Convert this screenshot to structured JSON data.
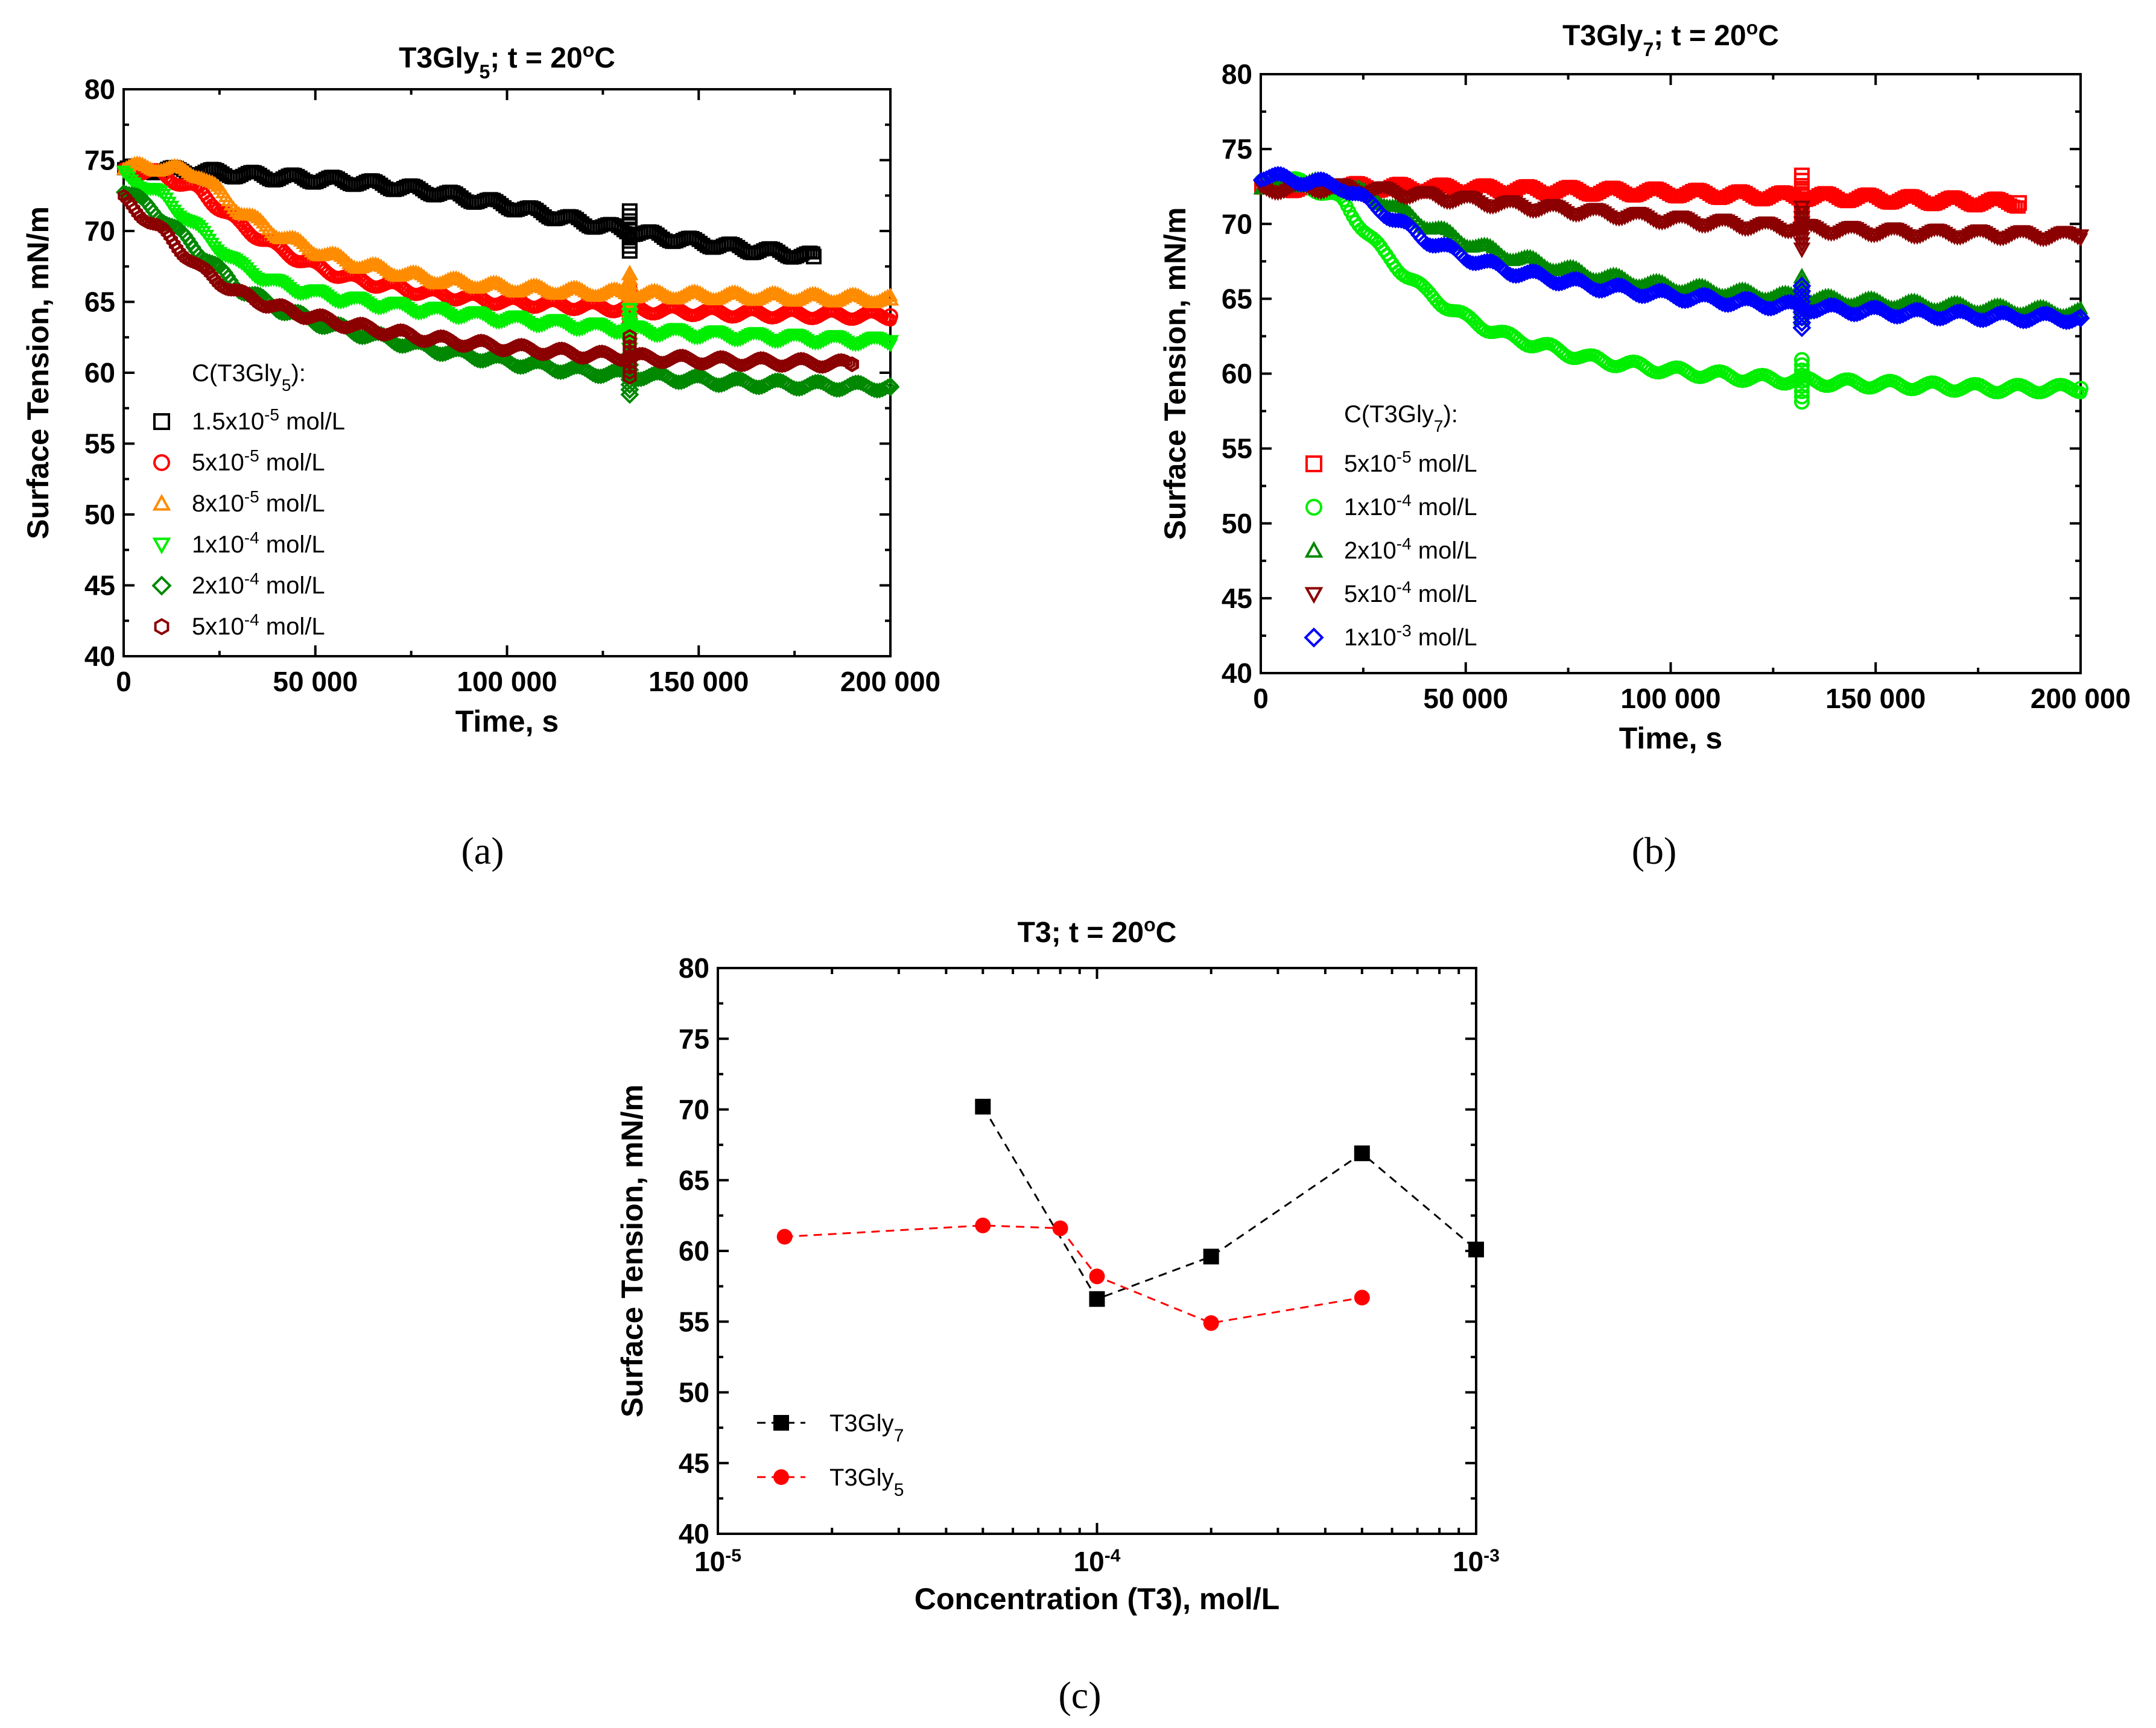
{
  "panels": {
    "a": "(a)",
    "b": "(b)",
    "c": "(c)"
  },
  "chart_data": [
    {
      "id": "a",
      "type": "scatter",
      "title_main": "T3Gly",
      "title_sub": "5",
      "title_rest": "; t = 20",
      "title_deg": "o",
      "title_end": "C",
      "xlabel": "Time, s",
      "ylabel": "Surface Tension, mN/m",
      "xlim": [
        0,
        200000
      ],
      "ylim": [
        40,
        80
      ],
      "xticks": [
        0,
        50000,
        100000,
        150000,
        200000
      ],
      "xtick_labels": [
        "0",
        "50 000",
        "100 000",
        "150 000",
        "200 000"
      ],
      "yticks": [
        40,
        45,
        50,
        55,
        60,
        65,
        70,
        75,
        80
      ],
      "ytick_labels": [
        "40",
        "45",
        "50",
        "55",
        "60",
        "65",
        "70",
        "75",
        "80"
      ],
      "legend_title_main": "C(T3Gly",
      "legend_title_sub": "5",
      "legend_title_end": "):",
      "legend_position": "lower-left",
      "series": [
        {
          "name": "1.5x10-5 mol/L",
          "coef": "1.5x10",
          "exp": "-5",
          "unit": " mol/L",
          "color": "#000000",
          "marker": "square",
          "x": [
            0,
            20000,
            40000,
            60000,
            80000,
            100000,
            120000,
            140000,
            160000,
            180000
          ],
          "y": [
            74.4,
            74.2,
            73.8,
            73.5,
            72.8,
            71.8,
            70.6,
            69.6,
            68.8,
            68.2
          ]
        },
        {
          "name": "5x10-5 mol/L",
          "coef": "5x10",
          "exp": "-5",
          "unit": " mol/L",
          "color": "#ff0000",
          "marker": "circle",
          "x": [
            0,
            10000,
            20000,
            30000,
            40000,
            50000,
            60000,
            80000,
            100000,
            120000,
            140000,
            160000,
            180000,
            200000
          ],
          "y": [
            74.3,
            74.0,
            72.8,
            70.5,
            68.8,
            67.5,
            66.6,
            65.6,
            65.0,
            64.7,
            64.4,
            64.2,
            64.1,
            64.0
          ]
        },
        {
          "name": "8x10-5 mol/L",
          "coef": "8x10",
          "exp": "-5",
          "unit": " mol/L",
          "color": "#ff8c00",
          "marker": "triangle-up",
          "x": [
            0,
            10000,
            20000,
            30000,
            40000,
            50000,
            60000,
            80000,
            100000,
            120000,
            140000,
            160000,
            180000,
            200000
          ],
          "y": [
            74.5,
            74.5,
            74.0,
            71.5,
            69.8,
            68.6,
            67.7,
            66.6,
            66.0,
            65.7,
            65.5,
            65.4,
            65.3,
            65.2
          ]
        },
        {
          "name": "1x10-4 mol/L",
          "coef": "1x10",
          "exp": "-4",
          "unit": " mol/L",
          "color": "#00ee00",
          "marker": "triangle-down",
          "x": [
            0,
            10000,
            20000,
            30000,
            40000,
            50000,
            60000,
            80000,
            100000,
            120000,
            140000,
            160000,
            180000,
            200000
          ],
          "y": [
            74.0,
            72.5,
            70.0,
            67.6,
            66.3,
            65.6,
            65.1,
            64.4,
            63.8,
            63.3,
            62.9,
            62.6,
            62.4,
            62.2
          ]
        },
        {
          "name": "2x10-4 mol/L",
          "coef": "2x10",
          "exp": "-4",
          "unit": " mol/L",
          "color": "#008800",
          "marker": "diamond",
          "x": [
            0,
            10000,
            20000,
            30000,
            40000,
            50000,
            60000,
            80000,
            100000,
            120000,
            140000,
            160000,
            180000,
            200000
          ],
          "y": [
            73.0,
            71.0,
            68.5,
            66.0,
            64.6,
            63.6,
            62.9,
            61.7,
            60.8,
            60.1,
            59.7,
            59.3,
            59.1,
            59.0
          ]
        },
        {
          "name": "5x10-4 mol/L",
          "coef": "5x10",
          "exp": "-4",
          "unit": " mol/L",
          "color": "#8b0000",
          "marker": "hexagon",
          "x": [
            0,
            10000,
            20000,
            30000,
            40000,
            50000,
            60000,
            80000,
            100000,
            120000,
            140000,
            160000,
            180000,
            190000
          ],
          "y": [
            72.2,
            70.0,
            67.3,
            65.6,
            64.6,
            63.9,
            63.3,
            62.4,
            61.8,
            61.3,
            61.0,
            60.8,
            60.7,
            60.6
          ]
        }
      ]
    },
    {
      "id": "b",
      "type": "scatter",
      "title_main": "T3Gly",
      "title_sub": "7",
      "title_rest": "; t = 20",
      "title_deg": "o",
      "title_end": "C",
      "xlabel": "Time, s",
      "ylabel": "Surface Tension, mN/m",
      "xlim": [
        0,
        200000
      ],
      "ylim": [
        40,
        80
      ],
      "xticks": [
        0,
        50000,
        100000,
        150000,
        200000
      ],
      "xtick_labels": [
        "0",
        "50 000",
        "100 000",
        "150 000",
        "200 000"
      ],
      "yticks": [
        40,
        45,
        50,
        55,
        60,
        65,
        70,
        75,
        80
      ],
      "ytick_labels": [
        "40",
        "45",
        "50",
        "55",
        "60",
        "65",
        "70",
        "75",
        "80"
      ],
      "legend_title_main": "C(T3Gly",
      "legend_title_sub": "7",
      "legend_title_end": "):",
      "legend_position": "lower-left",
      "series": [
        {
          "name": "5x10-5 mol/L",
          "coef": "5x10",
          "exp": "-5",
          "unit": " mol/L",
          "color": "#ff0000",
          "marker": "square",
          "x": [
            0,
            20000,
            40000,
            60000,
            80000,
            100000,
            120000,
            140000,
            160000,
            185000
          ],
          "y": [
            72.4,
            72.5,
            72.4,
            72.3,
            72.2,
            72.1,
            71.9,
            71.8,
            71.6,
            71.4
          ]
        },
        {
          "name": "1x10-4 mol/L",
          "coef": "1x10",
          "exp": "-4",
          "unit": " mol/L",
          "color": "#00ee00",
          "marker": "circle",
          "x": [
            0,
            10000,
            20000,
            30000,
            40000,
            50000,
            60000,
            80000,
            100000,
            120000,
            140000,
            160000,
            180000,
            200000
          ],
          "y": [
            72.8,
            72.8,
            71.5,
            68.0,
            65.5,
            63.7,
            62.5,
            61.0,
            60.2,
            59.7,
            59.4,
            59.2,
            59.0,
            59.0
          ]
        },
        {
          "name": "2x10-4 mol/L",
          "coef": "2x10",
          "exp": "-4",
          "unit": " mol/L",
          "color": "#008800",
          "marker": "triangle-up",
          "x": [
            0,
            10000,
            20000,
            30000,
            40000,
            50000,
            60000,
            80000,
            100000,
            120000,
            140000,
            160000,
            180000,
            200000
          ],
          "y": [
            72.5,
            72.8,
            72.6,
            71.5,
            70.0,
            68.8,
            67.9,
            66.6,
            65.8,
            65.3,
            64.9,
            64.6,
            64.3,
            64.1
          ]
        },
        {
          "name": "5x10-4 mol/L",
          "coef": "5x10",
          "exp": "-4",
          "unit": " mol/L",
          "color": "#8b0000",
          "marker": "triangle-down",
          "x": [
            0,
            10000,
            20000,
            30000,
            40000,
            60000,
            80000,
            100000,
            120000,
            140000,
            160000,
            180000,
            200000
          ],
          "y": [
            72.3,
            72.4,
            72.4,
            72.2,
            71.9,
            71.3,
            70.8,
            70.3,
            69.9,
            69.6,
            69.4,
            69.3,
            69.2
          ]
        },
        {
          "name": "1x10-3 mol/L",
          "coef": "1x10",
          "exp": "-3",
          "unit": " mol/L",
          "color": "#0000ff",
          "marker": "diamond",
          "x": [
            0,
            10000,
            20000,
            30000,
            40000,
            50000,
            60000,
            80000,
            100000,
            120000,
            140000,
            160000,
            180000,
            200000
          ],
          "y": [
            73.2,
            72.9,
            72.5,
            70.8,
            69.0,
            67.8,
            66.9,
            65.9,
            65.2,
            64.7,
            64.3,
            64.0,
            63.8,
            63.7
          ]
        }
      ]
    },
    {
      "id": "c",
      "type": "line",
      "title_main": "T3; t = 20",
      "title_sub": "",
      "title_rest": "",
      "title_deg": "o",
      "title_end": "C",
      "xlabel": "Concentration (T3), mol/L",
      "ylabel": "Surface Tension, mN/m",
      "xscale": "log",
      "xlim": [
        1e-05,
        0.001
      ],
      "ylim": [
        40,
        80
      ],
      "xticks": [
        1e-05,
        0.0001,
        0.001
      ],
      "xtick_base": "10",
      "xtick_exps": [
        "-5",
        "-4",
        "-3"
      ],
      "yticks": [
        40,
        45,
        50,
        55,
        60,
        65,
        70,
        75,
        80
      ],
      "ytick_labels": [
        "40",
        "45",
        "50",
        "55",
        "60",
        "65",
        "70",
        "75",
        "80"
      ],
      "legend_position": "lower-left",
      "series": [
        {
          "name": "T3Gly7",
          "label_main": "T3Gly",
          "label_sub": "7",
          "color": "#000000",
          "marker": "square",
          "x": [
            5e-05,
            0.0001,
            0.0002,
            0.0005,
            0.001
          ],
          "y": [
            70.2,
            56.6,
            59.6,
            66.9,
            60.1
          ]
        },
        {
          "name": "T3Gly5",
          "label_main": "T3Gly",
          "label_sub": "5",
          "color": "#ff0000",
          "marker": "circle",
          "x": [
            1.5e-05,
            5e-05,
            8e-05,
            0.0001,
            0.0002,
            0.0005
          ],
          "y": [
            61.0,
            61.8,
            61.6,
            58.2,
            54.9,
            56.7
          ]
        }
      ]
    }
  ]
}
